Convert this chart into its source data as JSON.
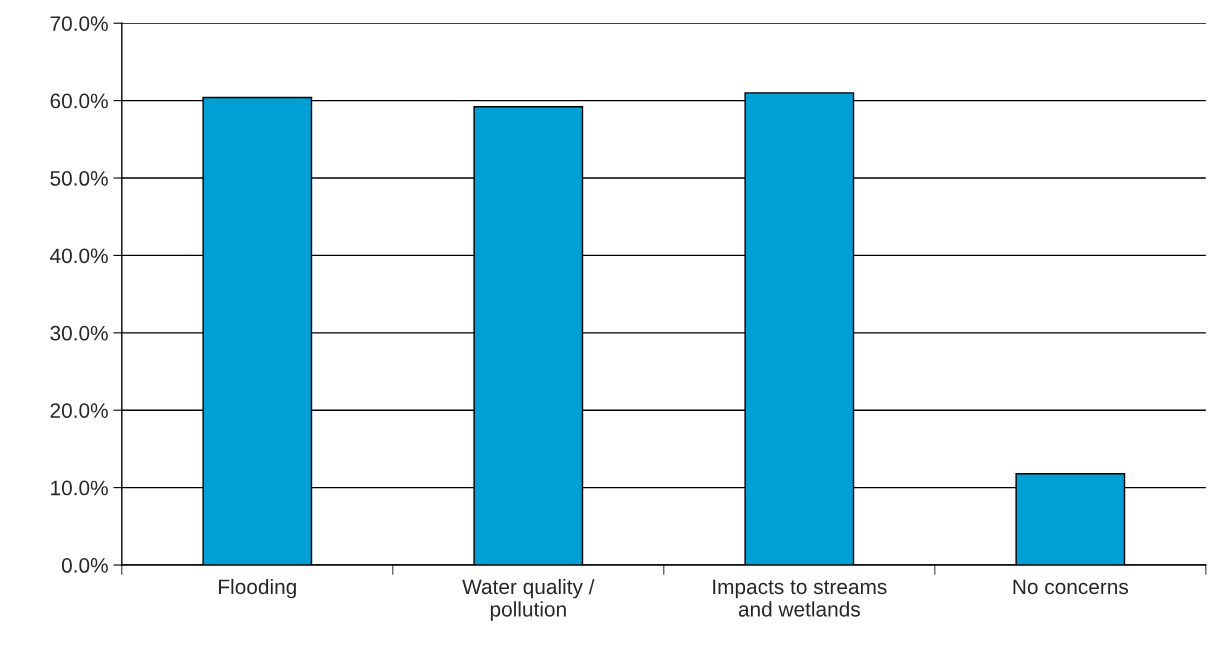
{
  "chart_data": {
    "type": "bar",
    "categories": [
      "Flooding",
      "Water quality /\npollution",
      "Impacts to streams\nand wetlands",
      "No concerns"
    ],
    "values": [
      60.4,
      59.2,
      61.0,
      11.8
    ],
    "color": "#009fd4",
    "ylim": [
      0,
      70
    ],
    "yticks": [
      {
        "value": 0,
        "label": "0.0%"
      },
      {
        "value": 10,
        "label": "10.0%"
      },
      {
        "value": 20,
        "label": "20.0%"
      },
      {
        "value": 30,
        "label": "30.0%"
      },
      {
        "value": 40,
        "label": "40.0%"
      },
      {
        "value": 50,
        "label": "50.0%"
      },
      {
        "value": 60,
        "label": "60.0%"
      },
      {
        "value": 70,
        "label": "70.0%"
      }
    ],
    "grid": "y",
    "legend": false
  }
}
